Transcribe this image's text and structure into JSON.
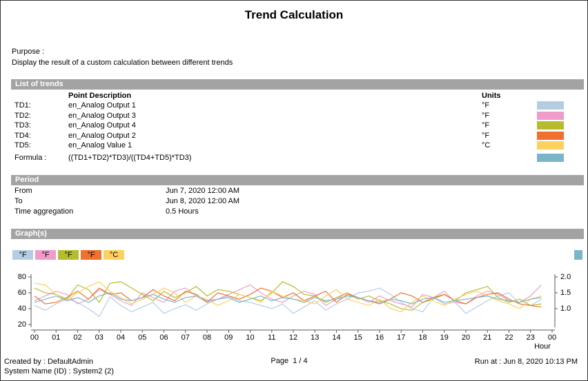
{
  "header": {
    "title": "Trend Calculation"
  },
  "purpose": {
    "label": "Purpose :",
    "text": "Display the result of a custom calculation between different trends"
  },
  "trends": {
    "section": "List of trends",
    "col_description": "Point Description",
    "col_units": "Units",
    "rows": [
      {
        "id": "TD1:",
        "description": "en_Analog Output 1",
        "units": "°F",
        "color": "#b4cde4"
      },
      {
        "id": "TD2:",
        "description": "en_Analog Output 3",
        "units": "°F",
        "color": "#f09cc8"
      },
      {
        "id": "TD3:",
        "description": "en_Analog Output 4",
        "units": "°F",
        "color": "#b5bd2c"
      },
      {
        "id": "TD4:",
        "description": "en_Analog Output 2",
        "units": "°F",
        "color": "#f07030"
      },
      {
        "id": "TD5:",
        "description": "en_Analog Value 1",
        "units": "°C",
        "color": "#fdd060"
      }
    ],
    "formula_label": "Formula :",
    "formula": "((TD1+TD2)*TD3)/((TD4+TD5)*TD3)",
    "formula_color": "#7ab6c8"
  },
  "period": {
    "section": "Period",
    "rows": [
      [
        "From",
        "Jun 7, 2020 12:00 AM"
      ],
      [
        "To",
        "Jun 8, 2020 12:00 AM"
      ],
      [
        "Time aggregation",
        "0.5 Hours"
      ]
    ]
  },
  "graph": {
    "section": "Graph(s)"
  },
  "chart_data": {
    "type": "line",
    "x_label": "Hour",
    "x": [
      0,
      0.5,
      1,
      1.5,
      2,
      2.5,
      3,
      3.5,
      4,
      4.5,
      5,
      5.5,
      6,
      6.5,
      7,
      7.5,
      8,
      8.5,
      9,
      9.5,
      10,
      10.5,
      11,
      11.5,
      12,
      12.5,
      13,
      13.5,
      14,
      14.5,
      15,
      15.5,
      16,
      16.5,
      17,
      17.5,
      18,
      18.5,
      19,
      19.5,
      20,
      20.5,
      21,
      21.5,
      22,
      22.5,
      23,
      23.5
    ],
    "xlim": [
      0,
      24
    ],
    "xticks": [
      {
        "value": 0,
        "label": "00"
      },
      {
        "value": 1,
        "label": "01"
      },
      {
        "value": 2,
        "label": "02"
      },
      {
        "value": 3,
        "label": "03"
      },
      {
        "value": 4,
        "label": "04"
      },
      {
        "value": 5,
        "label": "05"
      },
      {
        "value": 6,
        "label": "06"
      },
      {
        "value": 7,
        "label": "07"
      },
      {
        "value": 8,
        "label": "08"
      },
      {
        "value": 9,
        "label": "09"
      },
      10,
      11,
      12,
      13,
      14,
      15,
      16,
      17,
      18,
      19,
      20,
      21,
      22,
      23,
      {
        "value": 24,
        "label": "00"
      }
    ],
    "ylim": [
      20,
      80
    ],
    "yticks": [
      20,
      40,
      60,
      80
    ],
    "y2lim": [
      0.5,
      2.0
    ],
    "y2ticks": [
      {
        "value": 1,
        "label": "1.0"
      },
      {
        "value": 1.5,
        "label": "1.5"
      },
      {
        "value": 2,
        "label": "2.0"
      }
    ],
    "series": [
      {
        "name": "°F",
        "color": "#b4cde4",
        "values": [
          44,
          38,
          46,
          52,
          48,
          40,
          30,
          55,
          44,
          36,
          42,
          48,
          34,
          40,
          45,
          38,
          46,
          52,
          56,
          50,
          48,
          44,
          40,
          46,
          34,
          42,
          50,
          38,
          46,
          52,
          60,
          62,
          66,
          58,
          48,
          40,
          36,
          54,
          46,
          48,
          34,
          42,
          50,
          56,
          60,
          46,
          44,
          52
        ]
      },
      {
        "name": "°F",
        "color": "#f09cc8",
        "values": [
          50,
          56,
          62,
          58,
          46,
          52,
          64,
          58,
          50,
          44,
          60,
          54,
          48,
          62,
          66,
          56,
          48,
          52,
          58,
          64,
          70,
          60,
          52,
          48,
          56,
          62,
          58,
          44,
          52,
          60,
          54,
          48,
          56,
          50,
          46,
          42,
          58,
          54,
          62,
          48,
          46,
          56,
          62,
          58,
          50,
          48,
          56,
          70
        ]
      },
      {
        "name": "°F",
        "color": "#b5bd2c",
        "values": [
          66,
          60,
          58,
          52,
          70,
          64,
          48,
          72,
          74,
          66,
          58,
          50,
          62,
          54,
          60,
          68,
          56,
          64,
          62,
          58,
          54,
          50,
          60,
          74,
          68,
          58,
          56,
          48,
          54,
          60,
          52,
          56,
          50,
          46,
          40,
          38,
          48,
          52,
          58,
          50,
          60,
          64,
          68,
          54,
          48,
          52,
          44,
          46
        ]
      },
      {
        "name": "°F",
        "color": "#f07030",
        "values": [
          56,
          46,
          48,
          54,
          62,
          52,
          66,
          58,
          60,
          50,
          54,
          64,
          56,
          50,
          62,
          58,
          48,
          60,
          56,
          52,
          58,
          66,
          62,
          54,
          60,
          50,
          56,
          62,
          48,
          58,
          54,
          50,
          46,
          52,
          60,
          56,
          48,
          54,
          58,
          50,
          46,
          54,
          58,
          60,
          52,
          46,
          44,
          42
        ]
      },
      {
        "name": "°C",
        "color": "#fdd060",
        "values": [
          72,
          70,
          58,
          50,
          60,
          68,
          74,
          62,
          54,
          46,
          52,
          58,
          66,
          60,
          48,
          56,
          52,
          44,
          50,
          58,
          54,
          48,
          62,
          56,
          52,
          50,
          46,
          56,
          64,
          52,
          48,
          44,
          52,
          40,
          36,
          48,
          56,
          50,
          44,
          52,
          58,
          62,
          56,
          50,
          46,
          40,
          52,
          56
        ]
      },
      {
        "color": "#7ab6c8",
        "axis": "y2",
        "values": [
          1.2,
          1.3,
          1.4,
          1.25,
          1.35,
          1.2,
          1.4,
          1.5,
          1.3,
          1.25,
          1.35,
          1.45,
          1.3,
          1.2,
          1.35,
          1.4,
          1.25,
          1.3,
          1.35,
          1.2,
          1.3,
          1.4,
          1.25,
          1.35,
          1.3,
          1.2,
          1.35,
          1.25,
          1.3,
          1.4,
          1.35,
          1.25,
          1.2,
          1.3,
          1.25,
          1.15,
          1.3,
          1.35,
          1.2,
          1.25,
          1.3,
          1.35,
          1.4,
          1.3,
          1.25,
          1.2,
          1.3,
          1.35
        ]
      }
    ]
  },
  "footer": {
    "created_by": "Created by : DefaultAdmin",
    "system": "System Name (ID) : System2 (2)",
    "page": "Page  1 / 4",
    "run_at": "Run at : Jun 8, 2020 10:13 PM"
  }
}
